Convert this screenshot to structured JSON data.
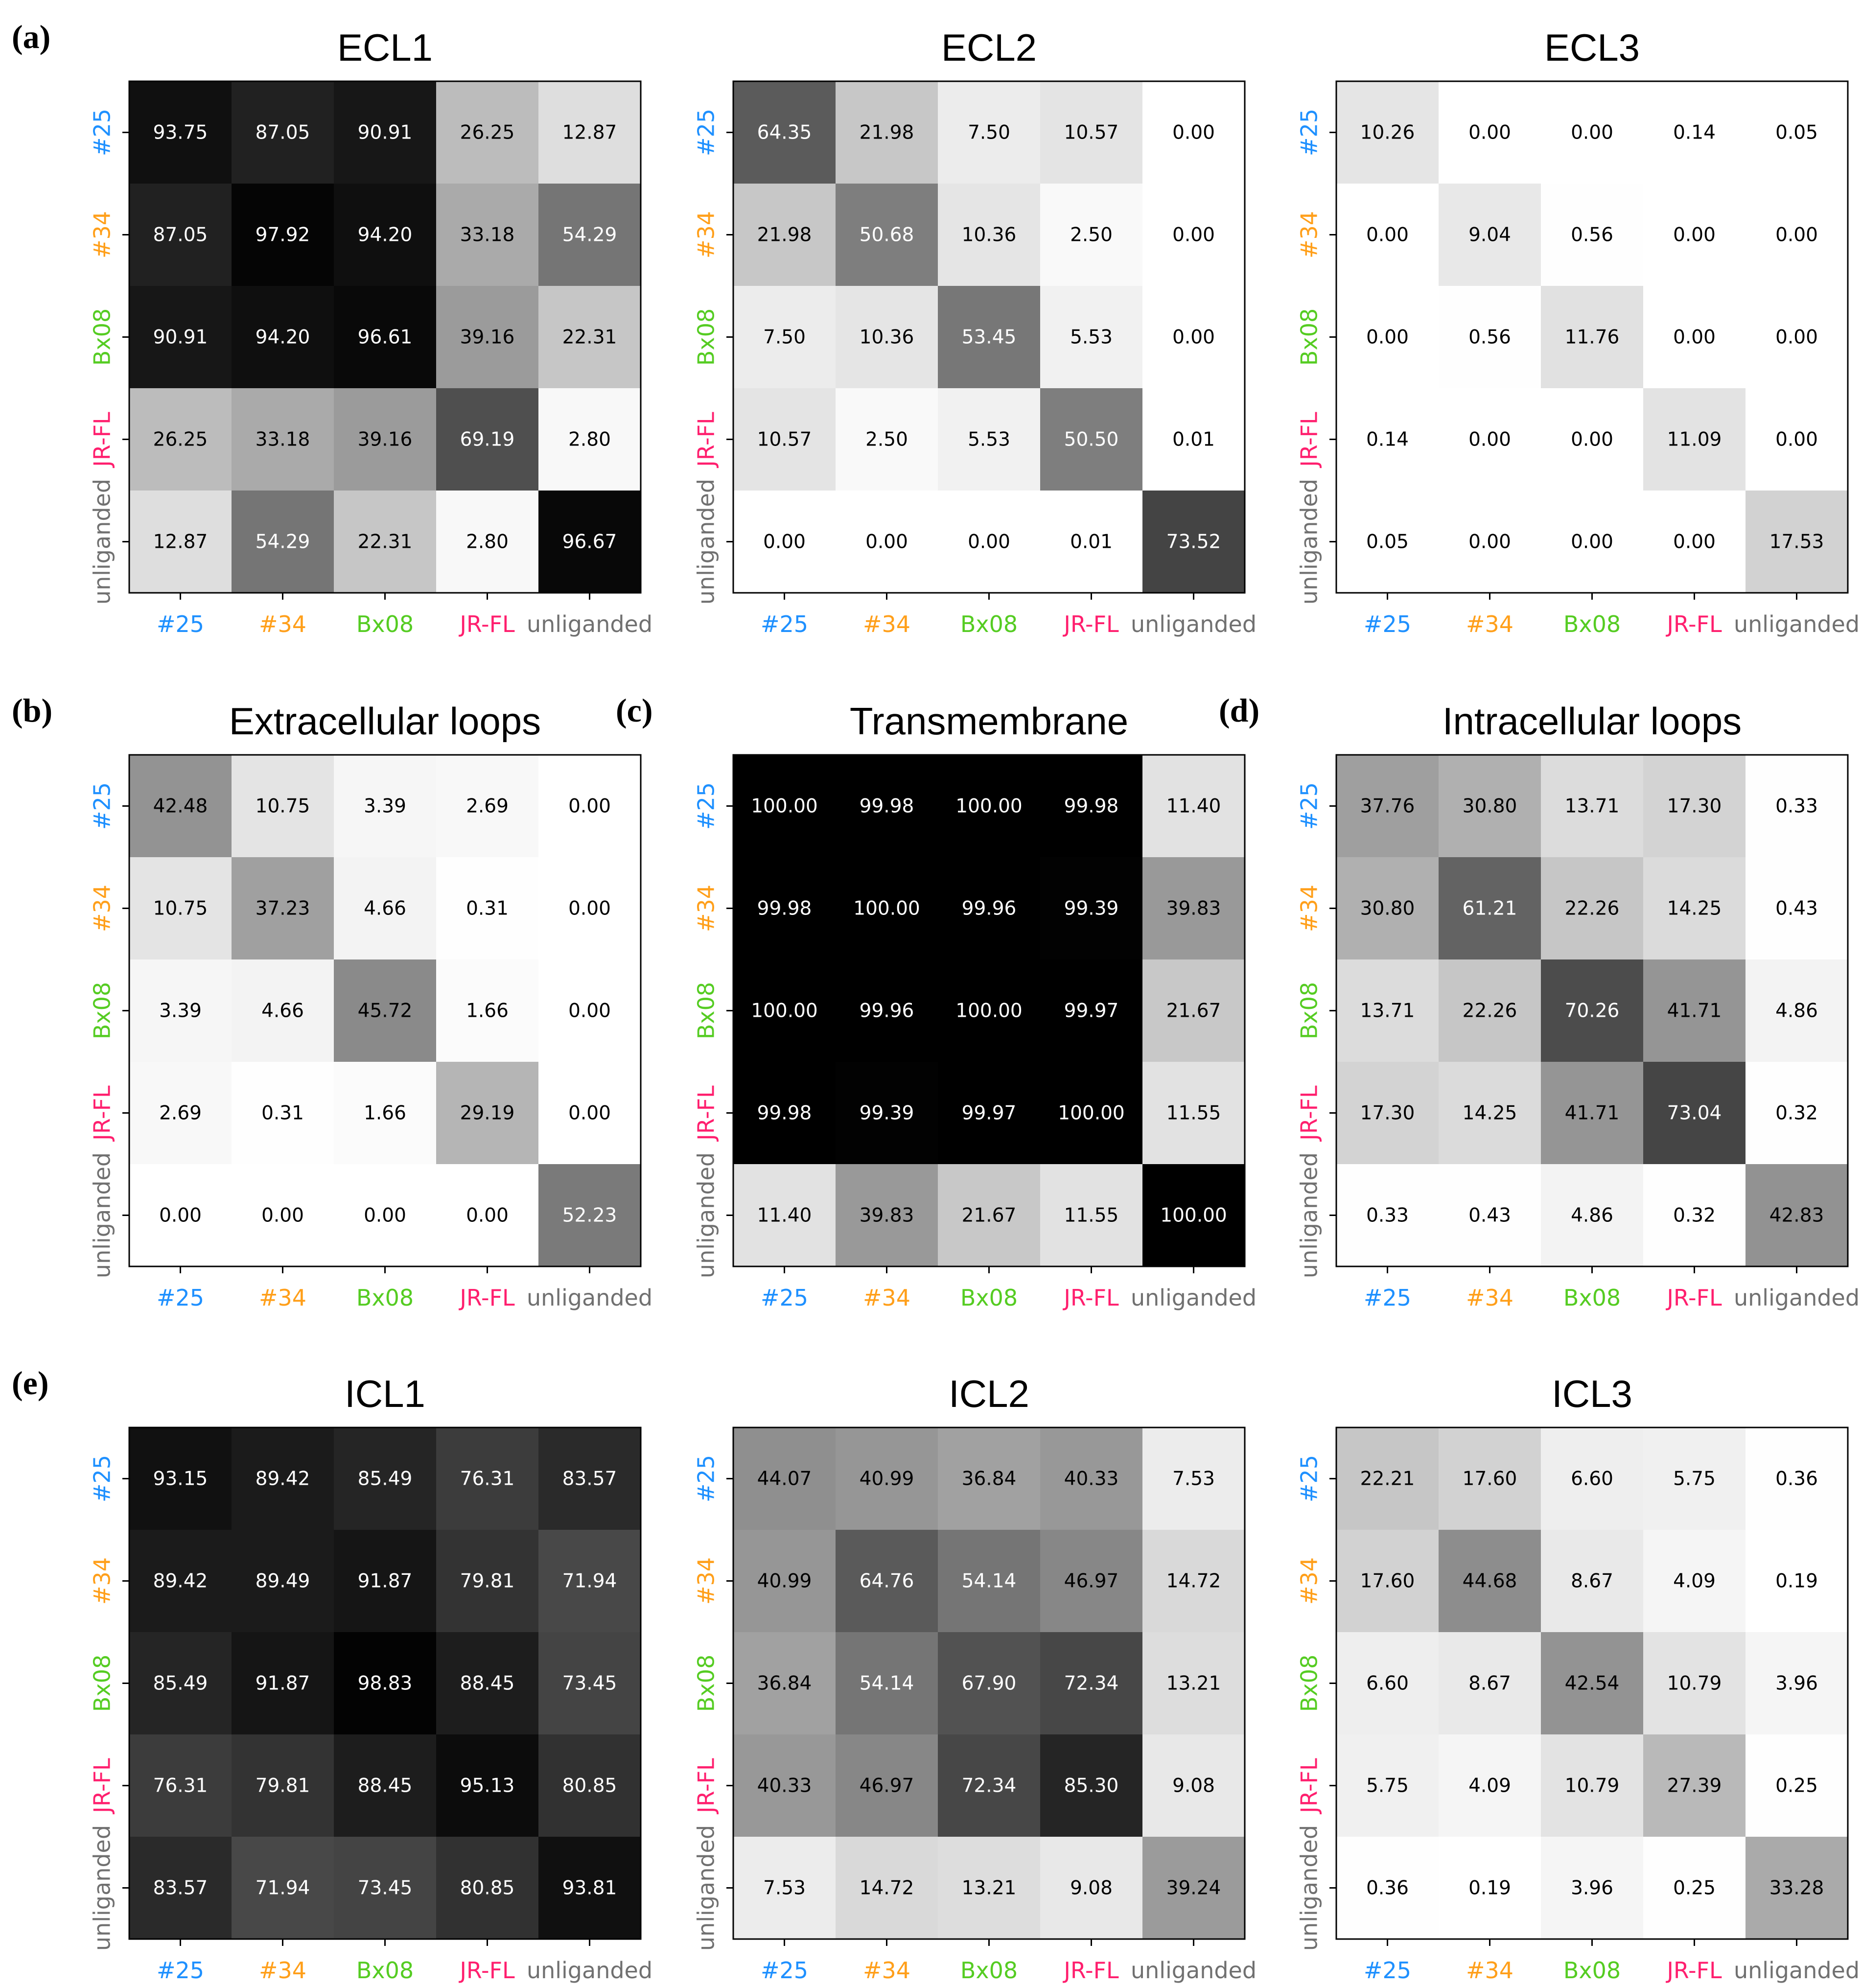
{
  "figure": {
    "labels": [
      "#25",
      "#34",
      "Bx08",
      "JR-FL",
      "unliganded"
    ],
    "label_colors": [
      "#1e90ff",
      "#ff9f1a",
      "#55cc22",
      "#ff1f6e",
      "#707070"
    ],
    "color_scale": {
      "min": 0,
      "max": 100,
      "low_color": "#ffffff",
      "high_color": "#000000"
    }
  },
  "chart_data": [
    {
      "type": "heatmap",
      "panel_label": "(a)",
      "title": "ECL1",
      "values": [
        [
          93.75,
          87.05,
          90.91,
          26.25,
          12.87
        ],
        [
          87.05,
          97.92,
          94.2,
          33.18,
          54.29
        ],
        [
          90.91,
          94.2,
          96.61,
          39.16,
          22.31
        ],
        [
          26.25,
          33.18,
          39.16,
          69.19,
          2.8
        ],
        [
          12.87,
          54.29,
          22.31,
          2.8,
          96.67
        ]
      ]
    },
    {
      "type": "heatmap",
      "panel_label": "",
      "title": "ECL2",
      "values": [
        [
          64.35,
          21.98,
          7.5,
          10.57,
          0.0
        ],
        [
          21.98,
          50.68,
          10.36,
          2.5,
          0.0
        ],
        [
          7.5,
          10.36,
          53.45,
          5.53,
          0.0
        ],
        [
          10.57,
          2.5,
          5.53,
          50.5,
          0.01
        ],
        [
          0.0,
          0.0,
          0.0,
          0.01,
          73.52
        ]
      ]
    },
    {
      "type": "heatmap",
      "panel_label": "",
      "title": "ECL3",
      "values": [
        [
          10.26,
          0.0,
          0.0,
          0.14,
          0.05
        ],
        [
          0.0,
          9.04,
          0.56,
          0.0,
          0.0
        ],
        [
          0.0,
          0.56,
          11.76,
          0.0,
          0.0
        ],
        [
          0.14,
          0.0,
          0.0,
          11.09,
          0.0
        ],
        [
          0.05,
          0.0,
          0.0,
          0.0,
          17.53
        ]
      ]
    },
    {
      "type": "heatmap",
      "panel_label": "(b)",
      "title": "Extracellular loops",
      "values": [
        [
          42.48,
          10.75,
          3.39,
          2.69,
          0.0
        ],
        [
          10.75,
          37.23,
          4.66,
          0.31,
          0.0
        ],
        [
          3.39,
          4.66,
          45.72,
          1.66,
          0.0
        ],
        [
          2.69,
          0.31,
          1.66,
          29.19,
          0.0
        ],
        [
          0.0,
          0.0,
          0.0,
          0.0,
          52.23
        ]
      ]
    },
    {
      "type": "heatmap",
      "panel_label": "(c)",
      "title": "Transmembrane",
      "values": [
        [
          100.0,
          99.98,
          100.0,
          99.98,
          11.4
        ],
        [
          99.98,
          100.0,
          99.96,
          99.39,
          39.83
        ],
        [
          100.0,
          99.96,
          100.0,
          99.97,
          21.67
        ],
        [
          99.98,
          99.39,
          99.97,
          100.0,
          11.55
        ],
        [
          11.4,
          39.83,
          21.67,
          11.55,
          100.0
        ]
      ]
    },
    {
      "type": "heatmap",
      "panel_label": "(d)",
      "title": "Intracellular loops",
      "values": [
        [
          37.76,
          30.8,
          13.71,
          17.3,
          0.33
        ],
        [
          30.8,
          61.21,
          22.26,
          14.25,
          0.43
        ],
        [
          13.71,
          22.26,
          70.26,
          41.71,
          4.86
        ],
        [
          17.3,
          14.25,
          41.71,
          73.04,
          0.32
        ],
        [
          0.33,
          0.43,
          4.86,
          0.32,
          42.83
        ]
      ]
    },
    {
      "type": "heatmap",
      "panel_label": "(e)",
      "title": "ICL1",
      "values": [
        [
          93.15,
          89.42,
          85.49,
          76.31,
          83.57
        ],
        [
          89.42,
          89.49,
          91.87,
          79.81,
          71.94
        ],
        [
          85.49,
          91.87,
          98.83,
          88.45,
          73.45
        ],
        [
          76.31,
          79.81,
          88.45,
          95.13,
          80.85
        ],
        [
          83.57,
          71.94,
          73.45,
          80.85,
          93.81
        ]
      ]
    },
    {
      "type": "heatmap",
      "panel_label": "",
      "title": "ICL2",
      "values": [
        [
          44.07,
          40.99,
          36.84,
          40.33,
          7.53
        ],
        [
          40.99,
          64.76,
          54.14,
          46.97,
          14.72
        ],
        [
          36.84,
          54.14,
          67.9,
          72.34,
          13.21
        ],
        [
          40.33,
          46.97,
          72.34,
          85.3,
          9.08
        ],
        [
          7.53,
          14.72,
          13.21,
          9.08,
          39.24
        ]
      ]
    },
    {
      "type": "heatmap",
      "panel_label": "",
      "title": "ICL3",
      "values": [
        [
          22.21,
          17.6,
          6.6,
          5.75,
          0.36
        ],
        [
          17.6,
          44.68,
          8.67,
          4.09,
          0.19
        ],
        [
          6.6,
          8.67,
          42.54,
          10.79,
          3.96
        ],
        [
          5.75,
          4.09,
          10.79,
          27.39,
          0.25
        ],
        [
          0.36,
          0.19,
          3.96,
          0.25,
          33.28
        ]
      ]
    }
  ]
}
